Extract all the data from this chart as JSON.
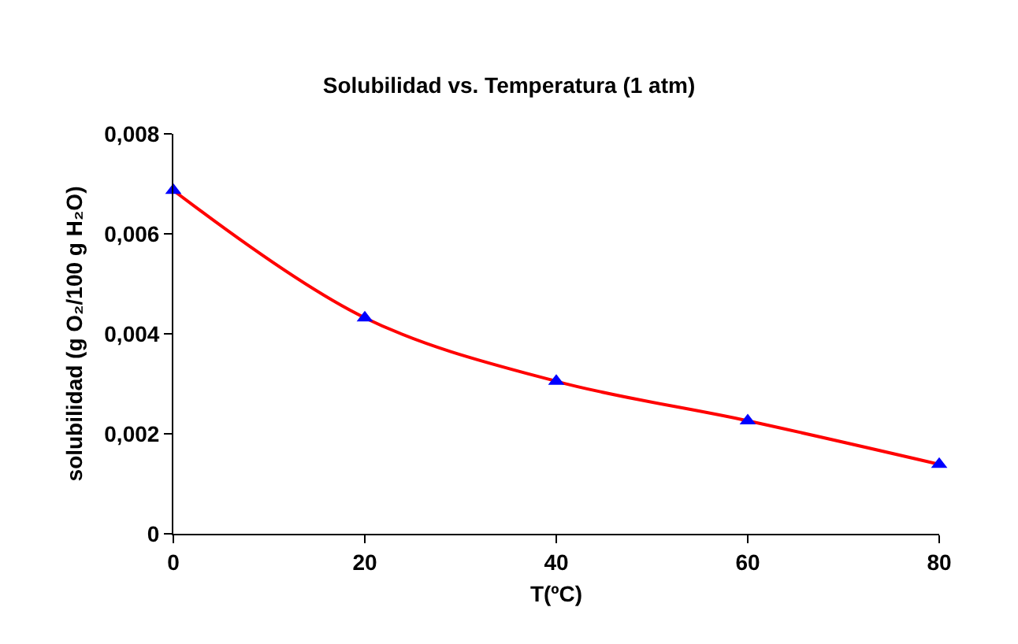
{
  "chart_data": {
    "type": "line",
    "title": "Solubilidad vs. Temperatura (1 atm)",
    "xlabel": "T(ºC)",
    "ylabel": "solubilidad (g O₂/100 g H₂O)",
    "x": [
      0,
      20,
      40,
      60,
      80
    ],
    "series": [
      {
        "color": "#ff0000",
        "colors": [
          "#0000ff",
          "#0000ff",
          "#0000ff",
          "#0000ff",
          "#0000ff"
        ],
        "values": [
          0.00687,
          0.00432,
          0.00305,
          0.00226,
          0.00139
        ]
      }
    ],
    "marker": "triangle",
    "line_style": "solid",
    "xlim": [
      0,
      80
    ],
    "xticks": [
      0,
      20,
      40,
      60,
      80
    ],
    "ylim": [
      0,
      0.008
    ],
    "yticks": [
      {
        "value": 0,
        "label": "0"
      },
      {
        "value": 0.002,
        "label": "0,002"
      },
      {
        "value": 0.004,
        "label": "0,004"
      },
      {
        "value": 0.006,
        "label": "0,006"
      },
      {
        "value": 0.008,
        "label": "0,008"
      }
    ]
  }
}
